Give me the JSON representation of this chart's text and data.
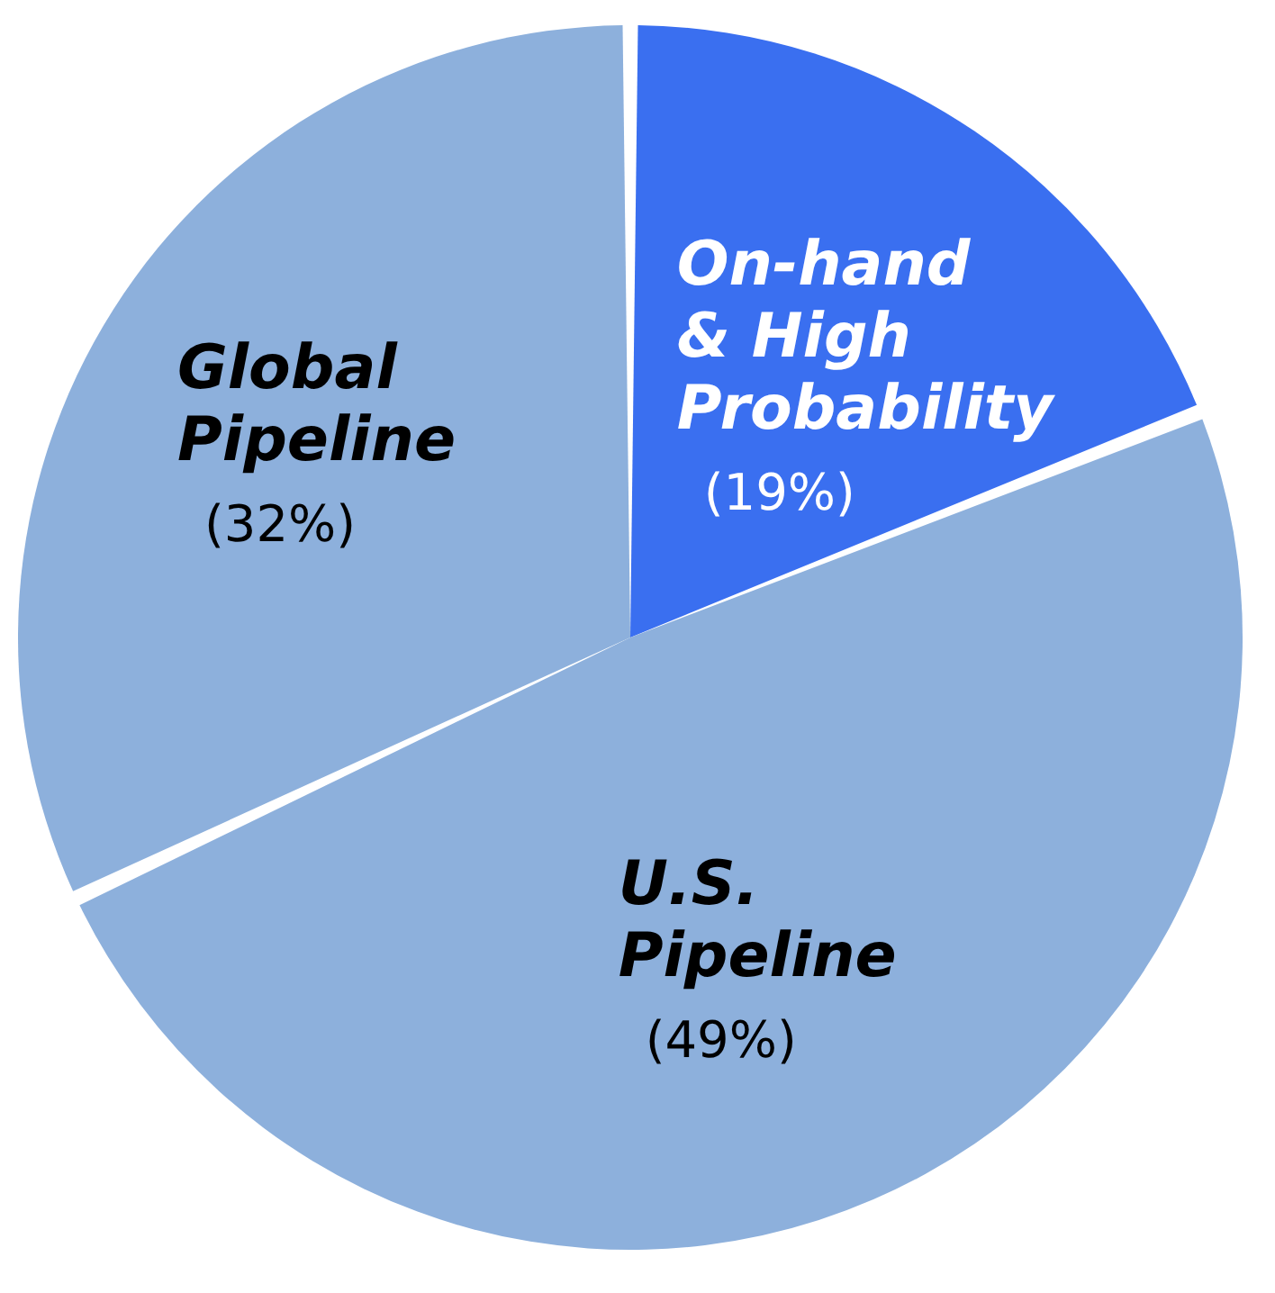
{
  "chart_data": {
    "type": "pie",
    "categories": [
      "On-hand\n& High\nProbability",
      "U.S.\nPipeline",
      "Global\nPipeline"
    ],
    "values": [
      19,
      49,
      32
    ],
    "colors": [
      "#3a6ff0",
      "#8db0dc",
      "#8db0dc"
    ],
    "value_labels": [
      "(19%)",
      "(49%)",
      "(32%)"
    ],
    "legend": false
  }
}
